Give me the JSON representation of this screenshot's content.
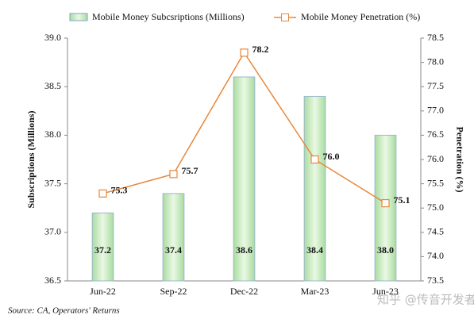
{
  "chart_data": {
    "type": "combo",
    "categories": [
      "Jun-22",
      "Sep-22",
      "Dec-22",
      "Mar-23",
      "Jun-23"
    ],
    "series": [
      {
        "name": "Mobile Money Subcsriptions (Millions)",
        "type": "bar",
        "color": "#c6ebbd",
        "values": [
          37.2,
          37.4,
          38.6,
          38.4,
          38.0
        ],
        "value_labels": [
          "37.2",
          "37.4",
          "38.6",
          "38.4",
          "38.0"
        ]
      },
      {
        "name": "Mobile Money Penetration (%)",
        "type": "line",
        "axis": "y2",
        "color": "#e8873a",
        "values": [
          75.3,
          75.7,
          78.2,
          76.0,
          75.1
        ],
        "value_labels": [
          "75.3",
          "75.7",
          "78.2",
          "76.0",
          "75.1"
        ]
      }
    ],
    "ylabel": "Subscriptions (Millions)",
    "y2label": "Penetration (%)",
    "ylim": [
      36.5,
      39.0
    ],
    "yticks": [
      36.5,
      {
        "value": 37.0,
        "label": "37.0"
      },
      37.5,
      {
        "value": 38.0,
        "label": "38.0"
      },
      38.5,
      {
        "value": 39.0,
        "label": "39.0"
      }
    ],
    "y2lim": [
      73.5,
      78.5
    ],
    "y2ticks": [
      73.5,
      {
        "value": 74.0,
        "label": "74.0"
      },
      74.5,
      {
        "value": 75.0,
        "label": "75.0"
      },
      75.5,
      {
        "value": 76.0,
        "label": "76.0"
      },
      76.5,
      {
        "value": 77.0,
        "label": "77.0"
      },
      77.5,
      {
        "value": 78.0,
        "label": "78.0"
      },
      78.5
    ],
    "source": "Source: CA, Operators' Returns",
    "watermark": "知乎 @传音开发者",
    "grid": false
  }
}
